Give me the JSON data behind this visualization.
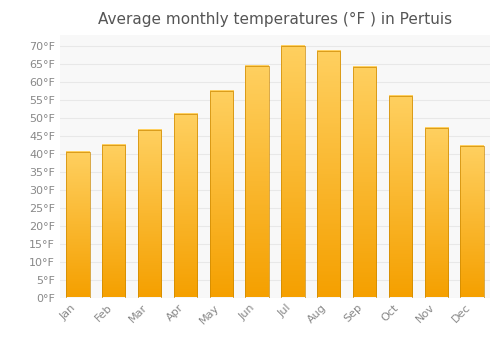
{
  "title": "Average monthly temperatures (°F ) in Pertuis",
  "months": [
    "Jan",
    "Feb",
    "Mar",
    "Apr",
    "May",
    "Jun",
    "Jul",
    "Aug",
    "Sep",
    "Oct",
    "Nov",
    "Dec"
  ],
  "values": [
    40.5,
    42.5,
    46.5,
    51.0,
    57.5,
    64.5,
    70.0,
    68.5,
    64.0,
    56.0,
    47.0,
    42.0
  ],
  "bar_color": "#FFA800",
  "bar_edge_color": "#CC8800",
  "ylim": [
    0,
    73
  ],
  "yticks": [
    0,
    5,
    10,
    15,
    20,
    25,
    30,
    35,
    40,
    45,
    50,
    55,
    60,
    65,
    70
  ],
  "background_color": "#FFFFFF",
  "plot_bg_color": "#F8F8F8",
  "grid_color": "#E8E8E8",
  "title_fontsize": 11,
  "tick_fontsize": 8,
  "title_color": "#555555",
  "tick_color": "#888888"
}
